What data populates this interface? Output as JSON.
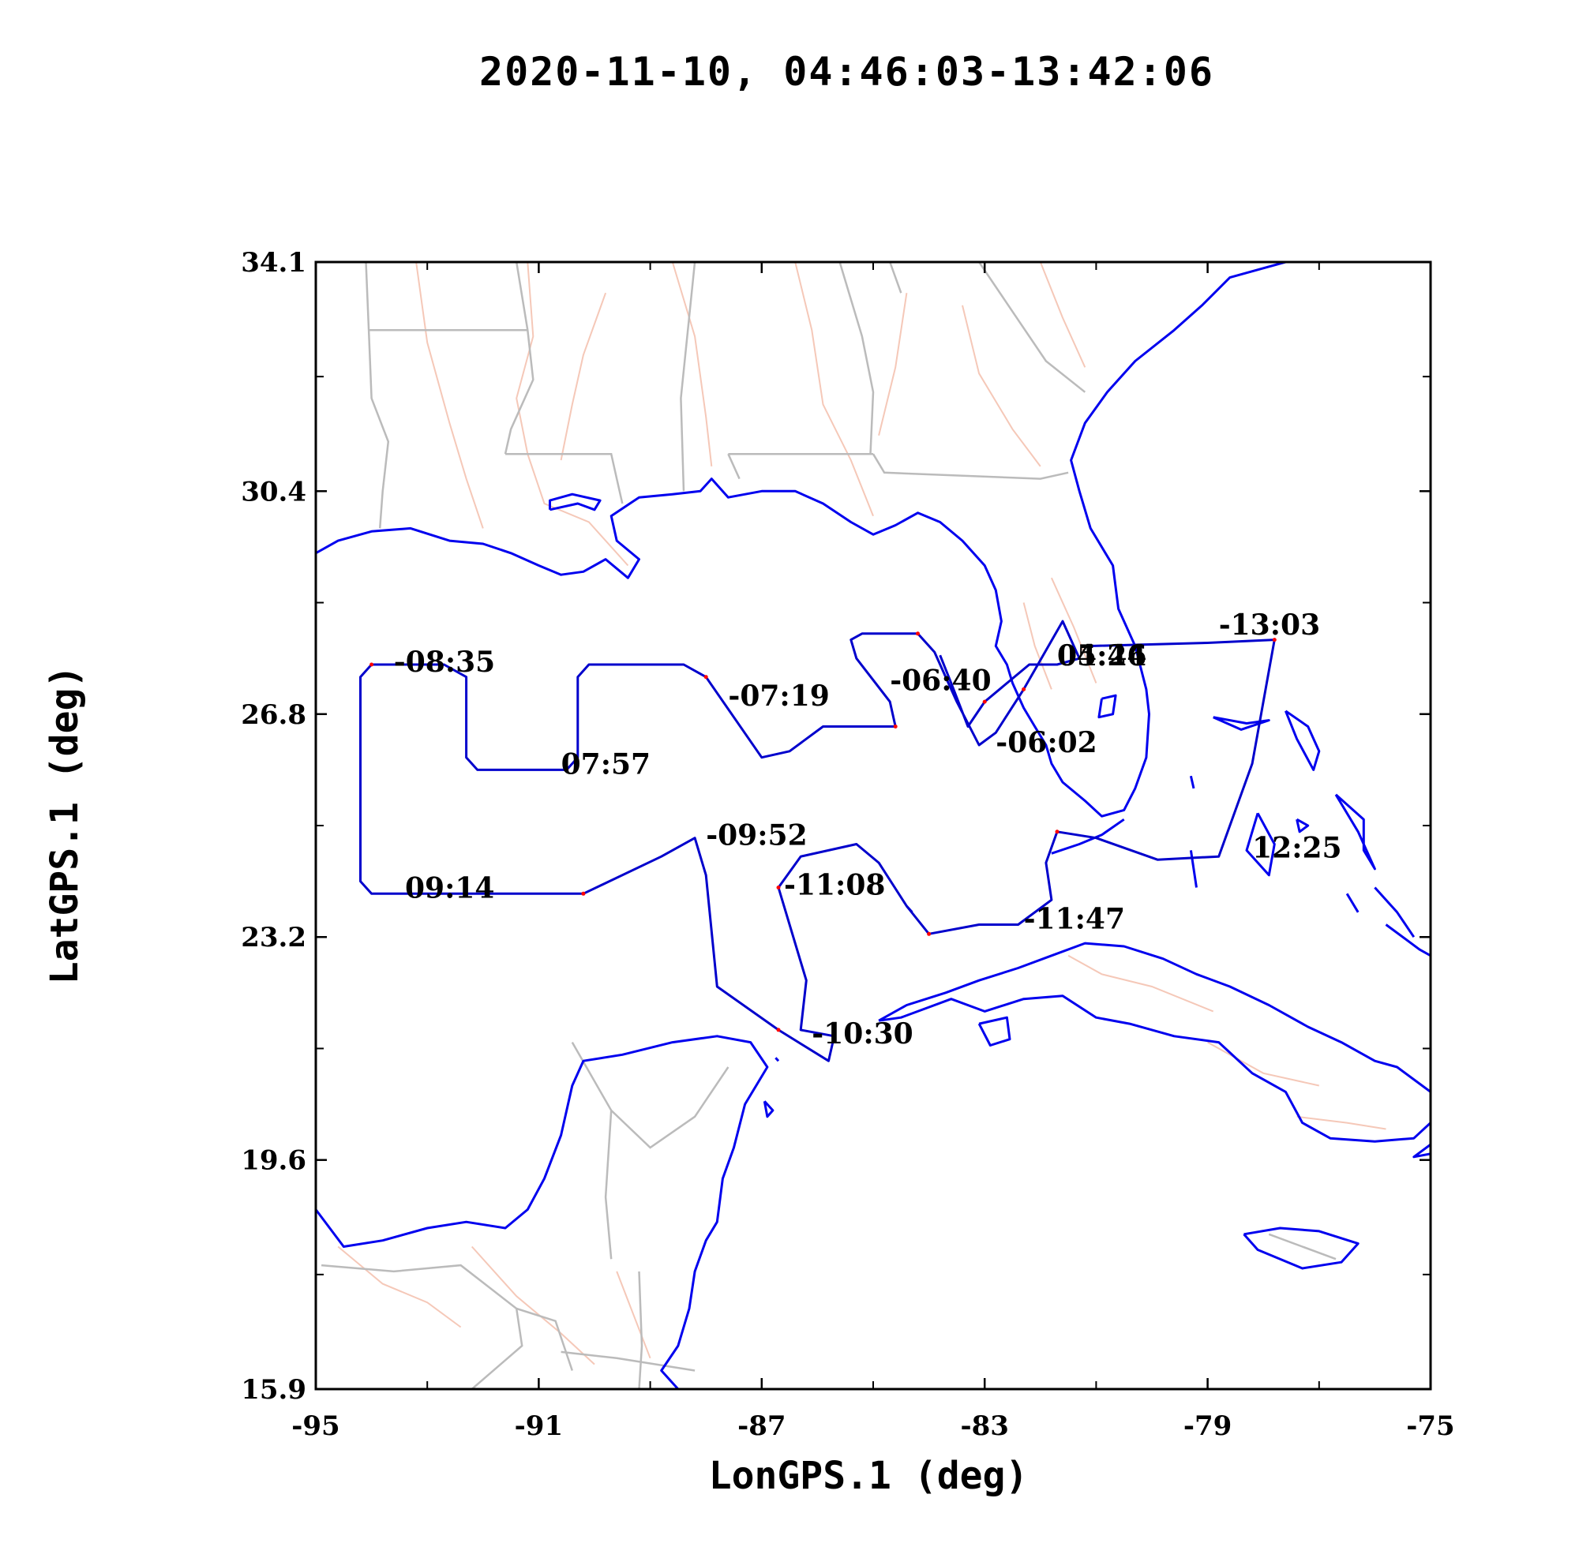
{
  "title": "2020-11-10, 04:46:03-13:42:06",
  "colors": {
    "coast": "#0000ee",
    "track": "#0000cc",
    "track_dots": "#ff0000",
    "borders": "#bbbbbb",
    "rivers": "#f5c8b8",
    "frame": "#000000"
  },
  "chart_data": {
    "type": "map",
    "xlabel": "LonGPS.1 (deg)",
    "ylabel": "LatGPS.1 (deg)",
    "xlim": [
      -95,
      -75
    ],
    "ylim": [
      15.9,
      34.1
    ],
    "x_ticks": [
      "-95",
      "-91",
      "-87",
      "-83",
      "-79",
      "-75"
    ],
    "y_ticks": [
      "34.1",
      "30.4",
      "26.8",
      "23.2",
      "19.6",
      "15.9"
    ],
    "x_tick_values": [
      -95,
      -91,
      -87,
      -83,
      -79,
      -75
    ],
    "y_tick_values": [
      34.1,
      30.4,
      26.8,
      23.2,
      19.6,
      15.9
    ],
    "flight_track": [
      [
        -81.1,
        27.9
      ],
      [
        -79.0,
        27.95
      ],
      [
        -77.8,
        28.0
      ],
      [
        -78.2,
        26.0
      ],
      [
        -78.8,
        24.5
      ],
      [
        -79.9,
        24.45
      ],
      [
        -81.0,
        24.8
      ],
      [
        -81.7,
        24.9
      ],
      [
        -81.9,
        24.4
      ],
      [
        -81.8,
        23.8
      ],
      [
        -82.4,
        23.4
      ],
      [
        -83.1,
        23.4
      ],
      [
        -84.0,
        23.25
      ],
      [
        -84.4,
        23.7
      ],
      [
        -84.9,
        24.4
      ],
      [
        -85.3,
        24.7
      ],
      [
        -86.3,
        24.5
      ],
      [
        -86.7,
        24.0
      ],
      [
        -86.2,
        22.5
      ],
      [
        -86.3,
        21.7
      ],
      [
        -85.7,
        21.6
      ],
      [
        -85.8,
        21.2
      ],
      [
        -86.7,
        21.7
      ],
      [
        -87.8,
        22.4
      ],
      [
        -88.0,
        24.2
      ],
      [
        -88.2,
        24.8
      ],
      [
        -88.8,
        24.5
      ],
      [
        -90.2,
        23.9
      ],
      [
        -92.1,
        23.9
      ],
      [
        -94.0,
        23.9
      ],
      [
        -94.2,
        24.1
      ],
      [
        -94.2,
        27.4
      ],
      [
        -94.0,
        27.6
      ],
      [
        -92.7,
        27.6
      ],
      [
        -92.3,
        27.4
      ],
      [
        -92.3,
        26.1
      ],
      [
        -92.1,
        25.9
      ],
      [
        -90.5,
        25.9
      ],
      [
        -90.3,
        26.1
      ],
      [
        -90.3,
        27.4
      ],
      [
        -90.1,
        27.6
      ],
      [
        -88.4,
        27.6
      ],
      [
        -88.0,
        27.4
      ],
      [
        -87.0,
        26.1
      ],
      [
        -86.5,
        26.2
      ],
      [
        -85.9,
        26.6
      ],
      [
        -85.3,
        26.6
      ],
      [
        -84.6,
        26.6
      ],
      [
        -84.7,
        27.0
      ],
      [
        -85.3,
        27.7
      ],
      [
        -85.4,
        28.0
      ],
      [
        -85.2,
        28.1
      ],
      [
        -84.2,
        28.1
      ],
      [
        -83.9,
        27.8
      ],
      [
        -83.5,
        27.0
      ],
      [
        -83.1,
        26.3
      ],
      [
        -82.8,
        26.5
      ],
      [
        -82.3,
        27.2
      ],
      [
        -81.6,
        28.3
      ],
      [
        -81.3,
        27.7
      ],
      [
        -81.7,
        27.6
      ],
      [
        -82.2,
        27.6
      ],
      [
        -83.0,
        27.0
      ],
      [
        -83.3,
        26.6
      ],
      [
        -83.6,
        27.3
      ],
      [
        -83.8,
        27.75
      ]
    ],
    "time_labels": [
      {
        "text": "-13:03",
        "lon": -78.8,
        "lat": 28.2
      },
      {
        "text": "12:25",
        "lon": -78.2,
        "lat": 24.6
      },
      {
        "text": "-11:47",
        "lon": -82.3,
        "lat": 23.45
      },
      {
        "text": "-11:08",
        "lon": -86.6,
        "lat": 24.0
      },
      {
        "text": "-10:30",
        "lon": -86.1,
        "lat": 21.6
      },
      {
        "text": "-09:52",
        "lon": -88.0,
        "lat": 24.8
      },
      {
        "text": "09:14",
        "lon": -93.4,
        "lat": 23.95
      },
      {
        "text": "-08:35",
        "lon": -93.6,
        "lat": 27.6
      },
      {
        "text": "07:57",
        "lon": -90.6,
        "lat": 25.95
      },
      {
        "text": "-07:19",
        "lon": -87.6,
        "lat": 27.05
      },
      {
        "text": "-06:40",
        "lon": -84.7,
        "lat": 27.3
      },
      {
        "text": "-06:02",
        "lon": -82.8,
        "lat": 26.3
      },
      {
        "text": "05:24",
        "lon": -81.7,
        "lat": 27.7
      },
      {
        "text": "04:46",
        "lon": -81.7,
        "lat": 27.7
      }
    ]
  }
}
